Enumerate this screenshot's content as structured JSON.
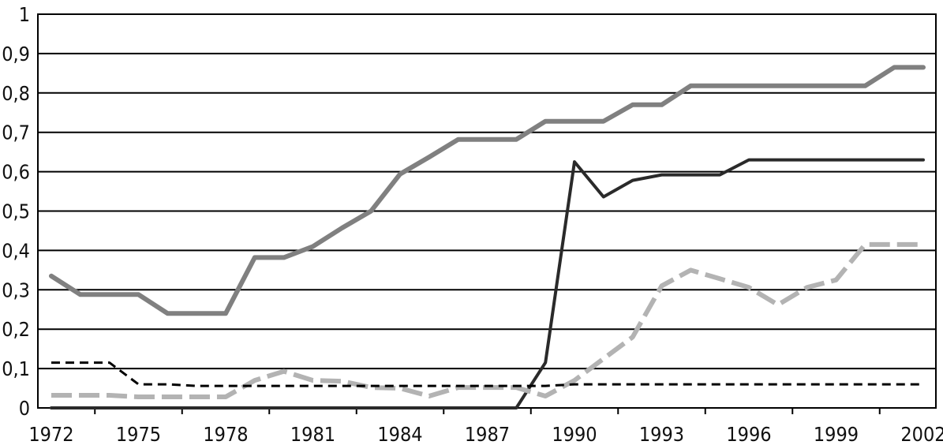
{
  "chart_data": {
    "type": "line",
    "title": "",
    "xlabel": "",
    "ylabel": "",
    "xlim": [
      1972,
      2002
    ],
    "ylim": [
      0,
      1
    ],
    "grid": true,
    "legend": "none",
    "y_ticks": [
      {
        "value": 0,
        "label": "0"
      },
      {
        "value": 0.1,
        "label": "0,1"
      },
      {
        "value": 0.2,
        "label": "0,2"
      },
      {
        "value": 0.3,
        "label": "0,3"
      },
      {
        "value": 0.4,
        "label": "0,4"
      },
      {
        "value": 0.5,
        "label": "0,5"
      },
      {
        "value": 0.6,
        "label": "0,6"
      },
      {
        "value": 0.7,
        "label": "0,7"
      },
      {
        "value": 0.8,
        "label": "0,8"
      },
      {
        "value": 0.9,
        "label": "0,9"
      },
      {
        "value": 1,
        "label": "1"
      }
    ],
    "x_ticks": [
      {
        "value": 1972,
        "label": "1972"
      },
      {
        "value": 1975,
        "label": "1975"
      },
      {
        "value": 1978,
        "label": "1978"
      },
      {
        "value": 1981,
        "label": "1981"
      },
      {
        "value": 1984,
        "label": "1984"
      },
      {
        "value": 1987,
        "label": "1987"
      },
      {
        "value": 1990,
        "label": "1990"
      },
      {
        "value": 1993,
        "label": "1993"
      },
      {
        "value": 1996,
        "label": "1996"
      },
      {
        "value": 1999,
        "label": "1999"
      },
      {
        "value": 2002,
        "label": "2002"
      }
    ],
    "x": [
      1972,
      1973,
      1974,
      1975,
      1976,
      1977,
      1978,
      1979,
      1980,
      1981,
      1982,
      1983,
      1984,
      1985,
      1986,
      1987,
      1988,
      1989,
      1990,
      1991,
      1992,
      1993,
      1994,
      1995,
      1996,
      1997,
      1998,
      1999,
      2000,
      2001,
      2002
    ],
    "series": [
      {
        "color": "#808080",
        "dash": "solid",
        "width": 6,
        "values": [
          0.335,
          0.288,
          0.288,
          0.288,
          0.24,
          0.24,
          0.24,
          0.382,
          0.382,
          0.41,
          0.457,
          0.5,
          0.594,
          0.637,
          0.682,
          0.682,
          0.682,
          0.728,
          0.728,
          0.728,
          0.77,
          0.77,
          0.818,
          0.818,
          0.818,
          0.818,
          0.818,
          0.818,
          0.818,
          0.865,
          0.865
        ]
      },
      {
        "color": "#2a2a2a",
        "dash": "solid",
        "width": 4,
        "values": [
          0,
          0,
          0,
          0,
          0,
          0,
          0,
          0,
          0,
          0,
          0,
          0,
          0,
          0,
          0,
          0,
          0,
          0.115,
          0.625,
          0.536,
          0.578,
          0.592,
          0.592,
          0.592,
          0.63,
          0.63,
          0.63,
          0.63,
          0.63,
          0.63,
          0.63
        ]
      },
      {
        "color": "#b3b3b3",
        "dash": "long-dash",
        "width": 6,
        "values": [
          0.032,
          0.032,
          0.032,
          0.028,
          0.028,
          0.028,
          0.028,
          0.07,
          0.093,
          0.07,
          0.068,
          0.052,
          0.05,
          0.03,
          0.052,
          0.052,
          0.052,
          0.03,
          0.07,
          0.125,
          0.18,
          0.31,
          0.35,
          0.328,
          0.306,
          0.262,
          0.306,
          0.325,
          0.415,
          0.415,
          0.415
        ]
      },
      {
        "color": "#000000",
        "dash": "short-dash",
        "width": 3,
        "values": [
          0.115,
          0.115,
          0.115,
          0.06,
          0.06,
          0.056,
          0.056,
          0.056,
          0.056,
          0.056,
          0.056,
          0.056,
          0.056,
          0.056,
          0.056,
          0.056,
          0.056,
          0.056,
          0.06,
          0.06,
          0.06,
          0.06,
          0.06,
          0.06,
          0.06,
          0.06,
          0.06,
          0.06,
          0.06,
          0.06,
          0.06
        ]
      }
    ]
  }
}
